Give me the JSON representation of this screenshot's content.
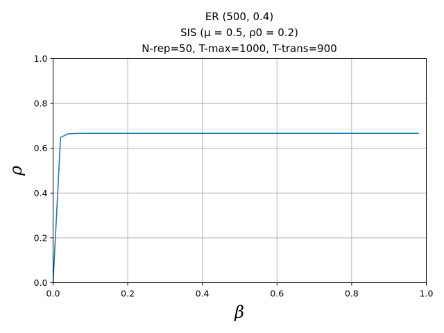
{
  "chart_data": {
    "type": "line",
    "title_lines": [
      "ER (500, 0.4)",
      "SIS (μ = 0.5, ρ0 = 0.2)",
      "N-rep=50,   T-max=1000,   T-trans=900"
    ],
    "xlabel": "β",
    "ylabel": "ρ",
    "xlim": [
      0.0,
      1.0
    ],
    "ylim": [
      0.0,
      1.0
    ],
    "xticks": [
      "0.0",
      "0.2",
      "0.4",
      "0.6",
      "0.8",
      "1.0"
    ],
    "yticks": [
      "0.0",
      "0.2",
      "0.4",
      "0.6",
      "0.8",
      "1.0"
    ],
    "grid": true,
    "series": [
      {
        "color": "#1f77b4",
        "x": [
          0.0,
          0.02,
          0.04,
          0.06,
          0.1,
          0.2,
          0.3,
          0.4,
          0.5,
          0.6,
          0.7,
          0.8,
          0.9,
          0.98
        ],
        "y": [
          0.0,
          0.648,
          0.664,
          0.666,
          0.6667,
          0.6667,
          0.6667,
          0.6667,
          0.6667,
          0.6667,
          0.6667,
          0.6667,
          0.6667,
          0.6667
        ]
      }
    ]
  }
}
